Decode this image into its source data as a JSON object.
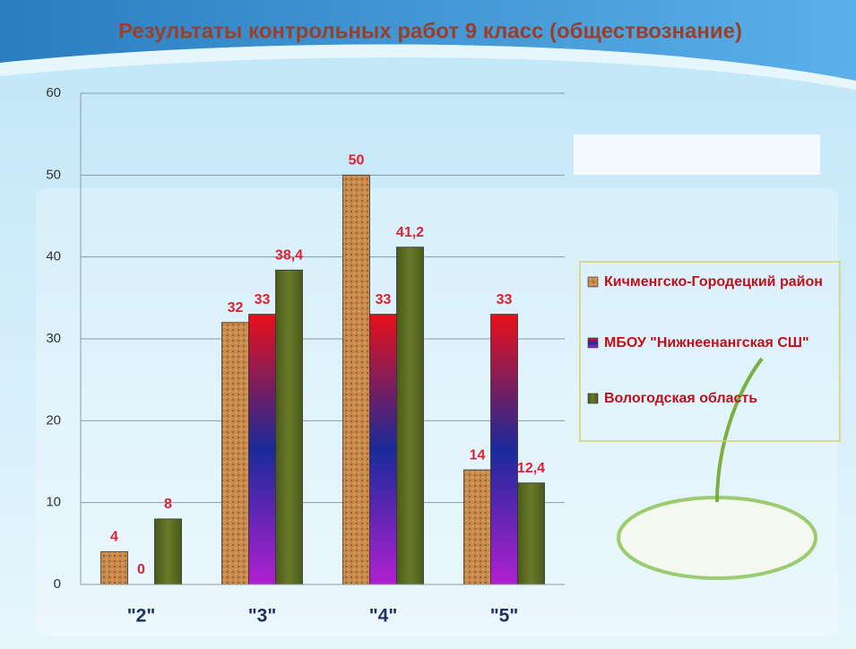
{
  "chart_data": {
    "type": "bar",
    "title": "Результаты контрольных работ 9 класс (обществознание)",
    "categories": [
      "\"2\"",
      "\"3\"",
      "\"4\"",
      "\"5\""
    ],
    "series": [
      {
        "name": "Кичменгско-Городецкий район",
        "color": "#c8894a",
        "values": [
          4,
          32,
          50,
          14
        ]
      },
      {
        "name": "МБОУ \"Нижнеенангская СШ\"",
        "color": "#e8101a",
        "values": [
          0,
          33,
          33,
          33
        ]
      },
      {
        "name": "Вологодская область",
        "color": "#4a5a1a",
        "values": [
          8,
          38.4,
          41.2,
          12.4
        ],
        "value_labels": [
          "8",
          "38,4",
          "41,2",
          "12,4"
        ]
      }
    ],
    "ylim": [
      0,
      60
    ],
    "yticks": [
      0,
      10,
      20,
      30,
      40,
      50,
      60
    ],
    "grid": true,
    "legend": "right"
  }
}
